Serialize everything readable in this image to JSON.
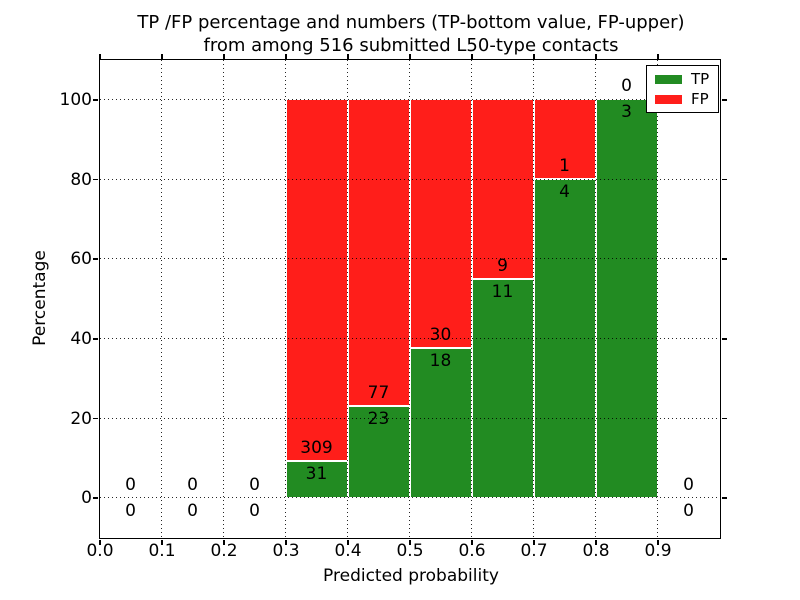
{
  "title": {
    "line1": "TP /FP percentage and numbers (TP-bottom value, FP-upper)",
    "line2": "from among 516 submitted L50-type contacts"
  },
  "axes": {
    "xlabel": "Predicted probability",
    "ylabel": "Percentage",
    "xtick_labels": [
      "0.0",
      "0.1",
      "0.2",
      "0.3",
      "0.4",
      "0.5",
      "0.6",
      "0.7",
      "0.8",
      "0.9"
    ],
    "xtick_values": [
      0.0,
      0.1,
      0.2,
      0.3,
      0.4,
      0.5,
      0.6,
      0.7,
      0.8,
      0.9
    ],
    "ytick_labels": [
      "0",
      "20",
      "40",
      "60",
      "80",
      "100"
    ],
    "ytick_values": [
      0,
      20,
      40,
      60,
      80,
      100
    ],
    "xlim": [
      0.0,
      1.0
    ],
    "ylim": [
      -10,
      110
    ],
    "grid": true
  },
  "legend": {
    "position": "upper right",
    "items": [
      {
        "name": "TP",
        "color": "#228B22"
      },
      {
        "name": "FP",
        "color": "#FF1E1A"
      }
    ]
  },
  "chart_data": {
    "type": "bar",
    "stacked": true,
    "normalized_to_percent": true,
    "title": "TP /FP percentage and numbers (TP-bottom value, FP-upper) from among 516 submitted L50-type contacts",
    "xlabel": "Predicted probability",
    "ylabel": "Percentage",
    "total_submitted": 516,
    "xlim": [
      0.0,
      1.0
    ],
    "ylim": [
      -10,
      110
    ],
    "bin_edges": [
      0.0,
      0.1,
      0.2,
      0.3,
      0.4,
      0.5,
      0.6,
      0.7,
      0.8,
      0.9,
      1.0
    ],
    "bins": [
      {
        "x0": 0.0,
        "x1": 0.1,
        "tp": 0,
        "fp": 0
      },
      {
        "x0": 0.1,
        "x1": 0.2,
        "tp": 0,
        "fp": 0
      },
      {
        "x0": 0.2,
        "x1": 0.3,
        "tp": 0,
        "fp": 0
      },
      {
        "x0": 0.3,
        "x1": 0.4,
        "tp": 31,
        "fp": 309
      },
      {
        "x0": 0.4,
        "x1": 0.5,
        "tp": 23,
        "fp": 77
      },
      {
        "x0": 0.5,
        "x1": 0.6,
        "tp": 18,
        "fp": 30
      },
      {
        "x0": 0.6,
        "x1": 0.7,
        "tp": 11,
        "fp": 9
      },
      {
        "x0": 0.7,
        "x1": 0.8,
        "tp": 4,
        "fp": 1
      },
      {
        "x0": 0.8,
        "x1": 0.9,
        "tp": 3,
        "fp": 0
      },
      {
        "x0": 0.9,
        "x1": 1.0,
        "tp": 0,
        "fp": 0
      }
    ],
    "series": [
      {
        "name": "TP",
        "color": "#228B22",
        "counts": [
          0,
          0,
          0,
          31,
          23,
          18,
          11,
          4,
          3,
          0
        ]
      },
      {
        "name": "FP",
        "color": "#FF1E1A",
        "counts": [
          0,
          0,
          0,
          309,
          77,
          30,
          9,
          1,
          0,
          0
        ]
      }
    ],
    "legend_position": "upper right"
  }
}
